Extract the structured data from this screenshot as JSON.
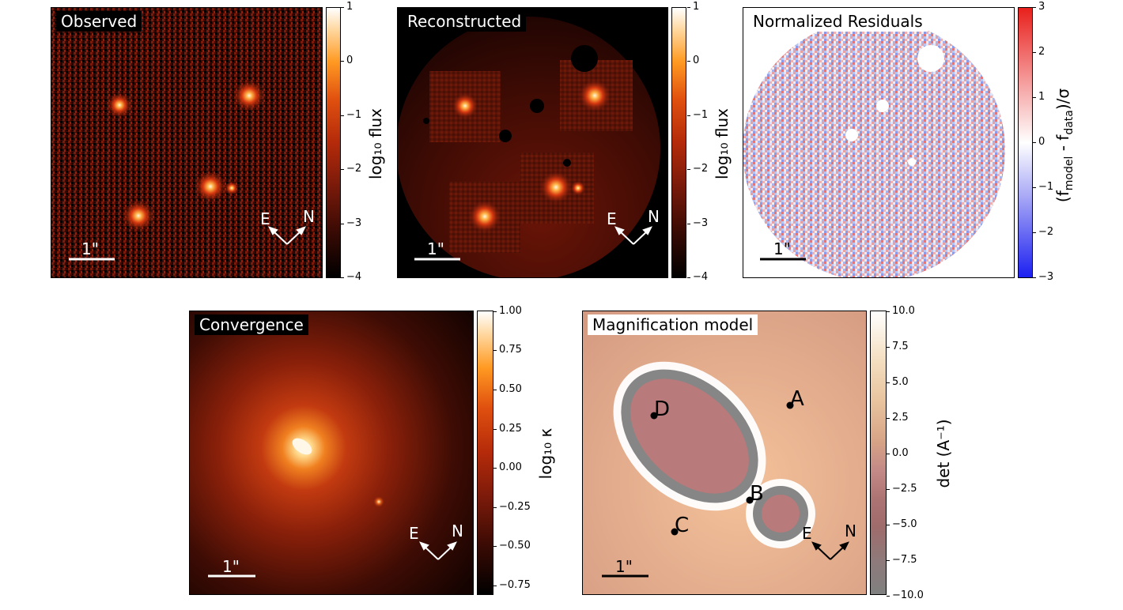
{
  "chart_data": [
    {
      "type": "heatmap",
      "title": "Observed",
      "colorbar": {
        "label": "log₁₀ flux",
        "ticks": [
          "1",
          "0",
          "−1",
          "−2",
          "−3",
          "−4"
        ],
        "range": [
          -4,
          1
        ],
        "colormap": "gist_heat"
      },
      "scale_bar": "1\"",
      "compass": {
        "east": "E",
        "north": "N"
      }
    },
    {
      "type": "heatmap",
      "title": "Reconstructed",
      "colorbar": {
        "label": "log₁₀ flux",
        "ticks": [
          "1",
          "0",
          "−1",
          "−2",
          "−3",
          "−4"
        ],
        "range": [
          -4,
          1
        ],
        "colormap": "gist_heat"
      },
      "scale_bar": "1\"",
      "compass": {
        "east": "E",
        "north": "N"
      }
    },
    {
      "type": "heatmap",
      "title": "Normalized Residuals",
      "colorbar": {
        "label": "(f_model - f_data)/σ",
        "label_parts": [
          "(f",
          "model",
          " - f",
          "data",
          ")/σ"
        ],
        "ticks": [
          "3",
          "2",
          "1",
          "0",
          "−1",
          "−2",
          "−3"
        ],
        "range": [
          -3,
          3
        ],
        "colormap": "bwr"
      },
      "scale_bar": "1\""
    },
    {
      "type": "heatmap",
      "title": "Convergence",
      "colorbar": {
        "label": "log₁₀ κ",
        "ticks": [
          "1.00",
          "0.75",
          "0.50",
          "0.25",
          "0.00",
          "−0.25",
          "−0.50",
          "−0.75"
        ],
        "range": [
          -0.8,
          1.0
        ],
        "colormap": "gist_heat"
      },
      "scale_bar": "1\"",
      "compass": {
        "east": "E",
        "north": "N"
      }
    },
    {
      "type": "heatmap",
      "title": "Magnification model",
      "colorbar": {
        "label": "det (A⁻¹)",
        "ticks": [
          "10.0",
          "7.5",
          "5.0",
          "2.5",
          "0.0",
          "−2.5",
          "−5.0",
          "−7.5",
          "−10.0"
        ],
        "range": [
          -10,
          10
        ],
        "colormap": "pink"
      },
      "image_labels": [
        "A",
        "B",
        "C",
        "D"
      ],
      "scale_bar": "1\"",
      "compass": {
        "east": "E",
        "north": "N"
      }
    }
  ]
}
